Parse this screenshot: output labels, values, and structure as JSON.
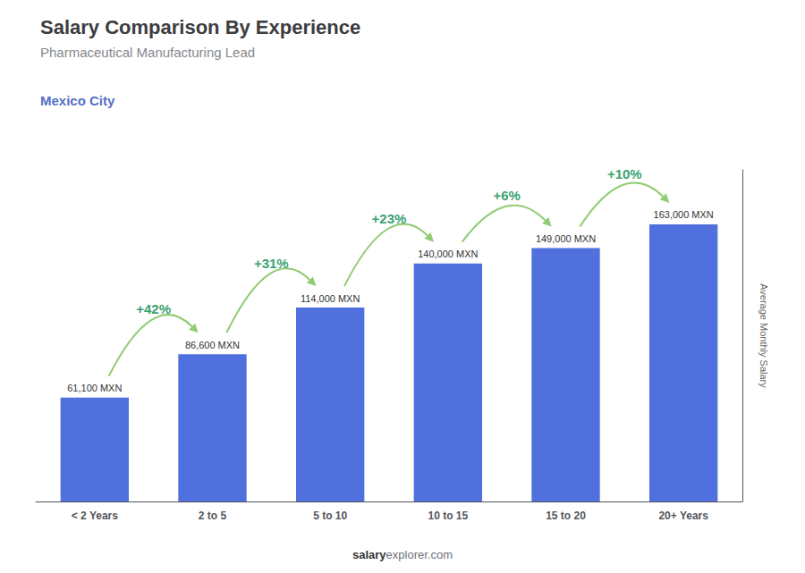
{
  "chart_data": {
    "type": "bar",
    "title": "Salary Comparison By Experience",
    "subtitle": "Pharmaceutical Manufacturing Lead",
    "city": "Mexico City",
    "categories": [
      "< 2 Years",
      "2 to 5",
      "5 to 10",
      "10 to 15",
      "15 to 20",
      "20+ Years"
    ],
    "values": [
      61100,
      86600,
      114000,
      140000,
      149000,
      163000
    ],
    "value_labels": [
      "61,100 MXN",
      "86,600 MXN",
      "114,000 MXN",
      "140,000 MXN",
      "149,000 MXN",
      "163,000 MXN"
    ],
    "data_labels": true,
    "ylabel": "Average Monthly Salary",
    "ylim": [
      0,
      195000
    ],
    "grid": false,
    "tick_labels": "x",
    "annotations": [
      {
        "from": "< 2 Years",
        "to": "2 to 5",
        "text": "+42%"
      },
      {
        "from": "2 to 5",
        "to": "5 to 10",
        "text": "+31%"
      },
      {
        "from": "5 to 10",
        "to": "10 to 15",
        "text": "+23%"
      },
      {
        "from": "10 to 15",
        "to": "15 to 20",
        "text": "+6%"
      },
      {
        "from": "15 to 20",
        "to": "20+ Years",
        "text": "+10%"
      }
    ],
    "watermark": [
      "salary",
      "explorer.com"
    ]
  }
}
